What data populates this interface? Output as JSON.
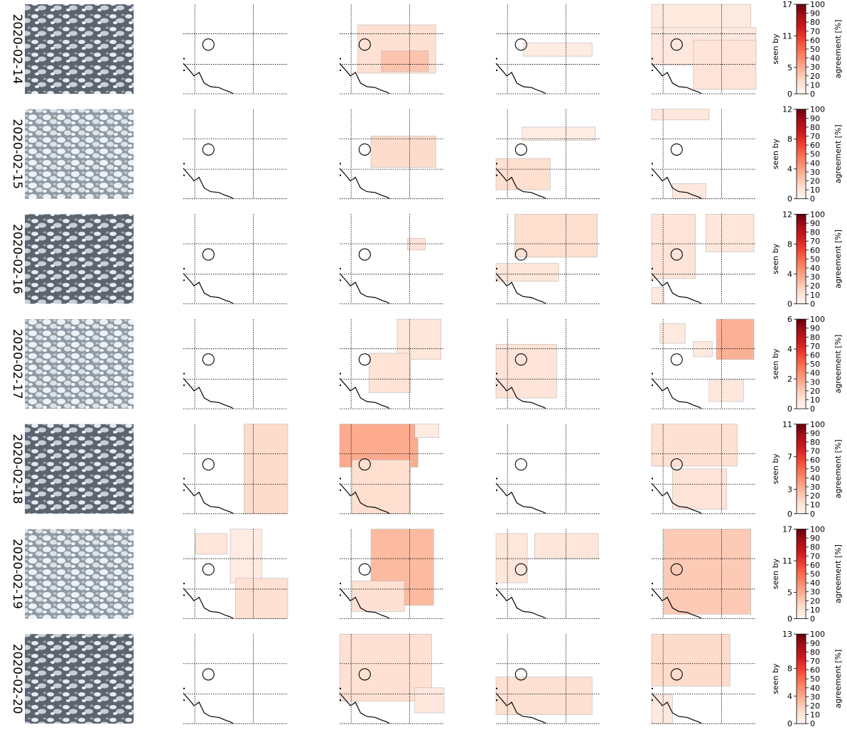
{
  "chart_data": {
    "type": "heatmap",
    "panel_columns": 4,
    "colorbar_label_left": "seen by",
    "colorbar_label_right": "agreement [%]",
    "agreement_ticks": [
      "0",
      "10",
      "20",
      "30",
      "40",
      "50",
      "60",
      "70",
      "80",
      "90",
      "100"
    ],
    "colormap": [
      "#fff5f0",
      "#fee0d2",
      "#fcbba1",
      "#fc9272",
      "#fb6a4a",
      "#ef3b2c",
      "#cb181d",
      "#a50f15",
      "#67000d"
    ],
    "rows": [
      {
        "date": "2020-02-14",
        "satellite_tone": "dark",
        "seen_by_max": 17,
        "seen_by_ticks": [
          "0",
          "5",
          "11",
          "17"
        ],
        "panels": [
          [],
          [
            {
              "x0": 0.175,
              "x1": 0.92,
              "y0": 0.23,
              "y1": 0.77,
              "v": 0.12
            },
            {
              "x0": 0.4,
              "x1": 0.85,
              "y0": 0.52,
              "y1": 0.75,
              "v": 0.22
            }
          ],
          [
            {
              "x0": 0.26,
              "x1": 0.92,
              "y0": 0.43,
              "y1": 0.58,
              "v": 0.06
            }
          ],
          [
            {
              "x0": 0.0,
              "x1": 0.95,
              "y0": 0.0,
              "y1": 0.26,
              "v": 0.07
            },
            {
              "x0": 0.0,
              "x1": 1.0,
              "y0": 0.26,
              "y1": 0.68,
              "v": 0.08
            },
            {
              "x0": 0.4,
              "x1": 1.0,
              "y0": 0.4,
              "y1": 0.95,
              "v": 0.1
            }
          ]
        ]
      },
      {
        "date": "2020-02-15",
        "satellite_tone": "light",
        "seen_by_max": 12,
        "seen_by_ticks": [
          "0",
          "4",
          "8",
          "12"
        ],
        "panels": [
          [],
          [
            {
              "x0": 0.3,
              "x1": 0.92,
              "y0": 0.3,
              "y1": 0.65,
              "v": 0.14
            }
          ],
          [
            {
              "x0": 0.25,
              "x1": 0.95,
              "y0": 0.2,
              "y1": 0.35,
              "v": 0.05
            },
            {
              "x0": 0.0,
              "x1": 0.52,
              "y0": 0.55,
              "y1": 0.9,
              "v": 0.13
            }
          ],
          [
            {
              "x0": 0.0,
              "x1": 0.55,
              "y0": 0.0,
              "y1": 0.12,
              "v": 0.08
            },
            {
              "x0": 0.2,
              "x1": 0.52,
              "y0": 0.83,
              "y1": 1.0,
              "v": 0.08
            }
          ]
        ]
      },
      {
        "date": "2020-02-16",
        "satellite_tone": "dark",
        "seen_by_max": 12,
        "seen_by_ticks": [
          "0",
          "4",
          "8",
          "12"
        ],
        "panels": [
          [],
          [
            {
              "x0": 0.65,
              "x1": 0.82,
              "y0": 0.27,
              "y1": 0.4,
              "v": 0.1
            }
          ],
          [
            {
              "x0": 0.18,
              "x1": 0.97,
              "y0": 0.0,
              "y1": 0.48,
              "v": 0.13
            },
            {
              "x0": 0.0,
              "x1": 0.6,
              "y0": 0.55,
              "y1": 0.75,
              "v": 0.09
            }
          ],
          [
            {
              "x0": 0.0,
              "x1": 0.42,
              "y0": 0.0,
              "y1": 0.72,
              "v": 0.1
            },
            {
              "x0": 0.52,
              "x1": 0.98,
              "y0": 0.0,
              "y1": 0.42,
              "v": 0.09
            },
            {
              "x0": 0.0,
              "x1": 0.12,
              "y0": 0.82,
              "y1": 1.0,
              "v": 0.08
            }
          ]
        ]
      },
      {
        "date": "2020-02-17",
        "satellite_tone": "light",
        "seen_by_max": 6,
        "seen_by_ticks": [
          "0",
          "2",
          "4",
          "6"
        ],
        "panels": [
          [],
          [
            {
              "x0": 0.55,
              "x1": 0.97,
              "y0": 0.0,
              "y1": 0.45,
              "v": 0.09
            },
            {
              "x0": 0.28,
              "x1": 0.68,
              "y0": 0.38,
              "y1": 0.82,
              "v": 0.11
            }
          ],
          [
            {
              "x0": 0.0,
              "x1": 0.58,
              "y0": 0.28,
              "y1": 0.88,
              "v": 0.1
            }
          ],
          [
            {
              "x0": 0.08,
              "x1": 0.32,
              "y0": 0.05,
              "y1": 0.27,
              "v": 0.07
            },
            {
              "x0": 0.4,
              "x1": 0.58,
              "y0": 0.25,
              "y1": 0.42,
              "v": 0.07
            },
            {
              "x0": 0.62,
              "x1": 0.98,
              "y0": 0.0,
              "y1": 0.45,
              "v": 0.28
            },
            {
              "x0": 0.55,
              "x1": 0.88,
              "y0": 0.68,
              "y1": 0.92,
              "v": 0.08
            }
          ]
        ]
      },
      {
        "date": "2020-02-18",
        "satellite_tone": "dark",
        "seen_by_max": 11,
        "seen_by_ticks": [
          "0",
          "3",
          "7",
          "11"
        ],
        "panels": [
          [
            {
              "x0": 0.58,
              "x1": 1.0,
              "y0": 0.0,
              "y1": 1.0,
              "v": 0.14
            }
          ],
          [
            {
              "x0": 0.0,
              "x1": 0.75,
              "y0": 0.0,
              "y1": 0.48,
              "v": 0.3
            },
            {
              "x0": 0.12,
              "x1": 0.68,
              "y0": 0.4,
              "y1": 1.0,
              "v": 0.13
            },
            {
              "x0": 0.72,
              "x1": 0.95,
              "y0": 0.0,
              "y1": 0.15,
              "v": 0.06
            }
          ],
          [],
          [
            {
              "x0": 0.0,
              "x1": 0.82,
              "y0": 0.0,
              "y1": 0.47,
              "v": 0.12
            },
            {
              "x0": 0.2,
              "x1": 0.72,
              "y0": 0.5,
              "y1": 0.95,
              "v": 0.1
            }
          ]
        ]
      },
      {
        "date": "2020-02-19",
        "satellite_tone": "light",
        "seen_by_max": 17,
        "seen_by_ticks": [
          "0",
          "5",
          "11",
          "17"
        ],
        "panels": [
          [
            {
              "x0": 0.12,
              "x1": 0.42,
              "y0": 0.05,
              "y1": 0.28,
              "v": 0.09
            },
            {
              "x0": 0.45,
              "x1": 0.75,
              "y0": 0.0,
              "y1": 0.6,
              "v": 0.06
            },
            {
              "x0": 0.5,
              "x1": 1.0,
              "y0": 0.55,
              "y1": 1.0,
              "v": 0.12
            }
          ],
          [
            {
              "x0": 0.3,
              "x1": 0.9,
              "y0": 0.0,
              "y1": 0.85,
              "v": 0.25
            },
            {
              "x0": 0.12,
              "x1": 0.62,
              "y0": 0.58,
              "y1": 0.92,
              "v": 0.12
            }
          ],
          [
            {
              "x0": 0.0,
              "x1": 0.3,
              "y0": 0.05,
              "y1": 0.6,
              "v": 0.09
            },
            {
              "x0": 0.37,
              "x1": 0.98,
              "y0": 0.05,
              "y1": 0.33,
              "v": 0.09
            }
          ],
          [
            {
              "x0": 0.12,
              "x1": 0.95,
              "y0": 0.0,
              "y1": 0.95,
              "v": 0.2
            }
          ]
        ]
      },
      {
        "date": "2020-02-20",
        "satellite_tone": "dark",
        "seen_by_max": 13,
        "seen_by_ticks": [
          "0",
          "4",
          "8",
          "13"
        ],
        "panels": [
          [],
          [
            {
              "x0": 0.0,
              "x1": 0.88,
              "y0": 0.0,
              "y1": 0.75,
              "v": 0.12
            },
            {
              "x0": 0.72,
              "x1": 1.0,
              "y0": 0.6,
              "y1": 0.88,
              "v": 0.08
            }
          ],
          [
            {
              "x0": 0.0,
              "x1": 0.92,
              "y0": 0.48,
              "y1": 0.9,
              "v": 0.12
            }
          ],
          [
            {
              "x0": 0.0,
              "x1": 0.75,
              "y0": 0.0,
              "y1": 0.58,
              "v": 0.14
            },
            {
              "x0": 0.0,
              "x1": 0.2,
              "y0": 0.68,
              "y1": 1.0,
              "v": 0.07
            }
          ]
        ]
      }
    ]
  }
}
